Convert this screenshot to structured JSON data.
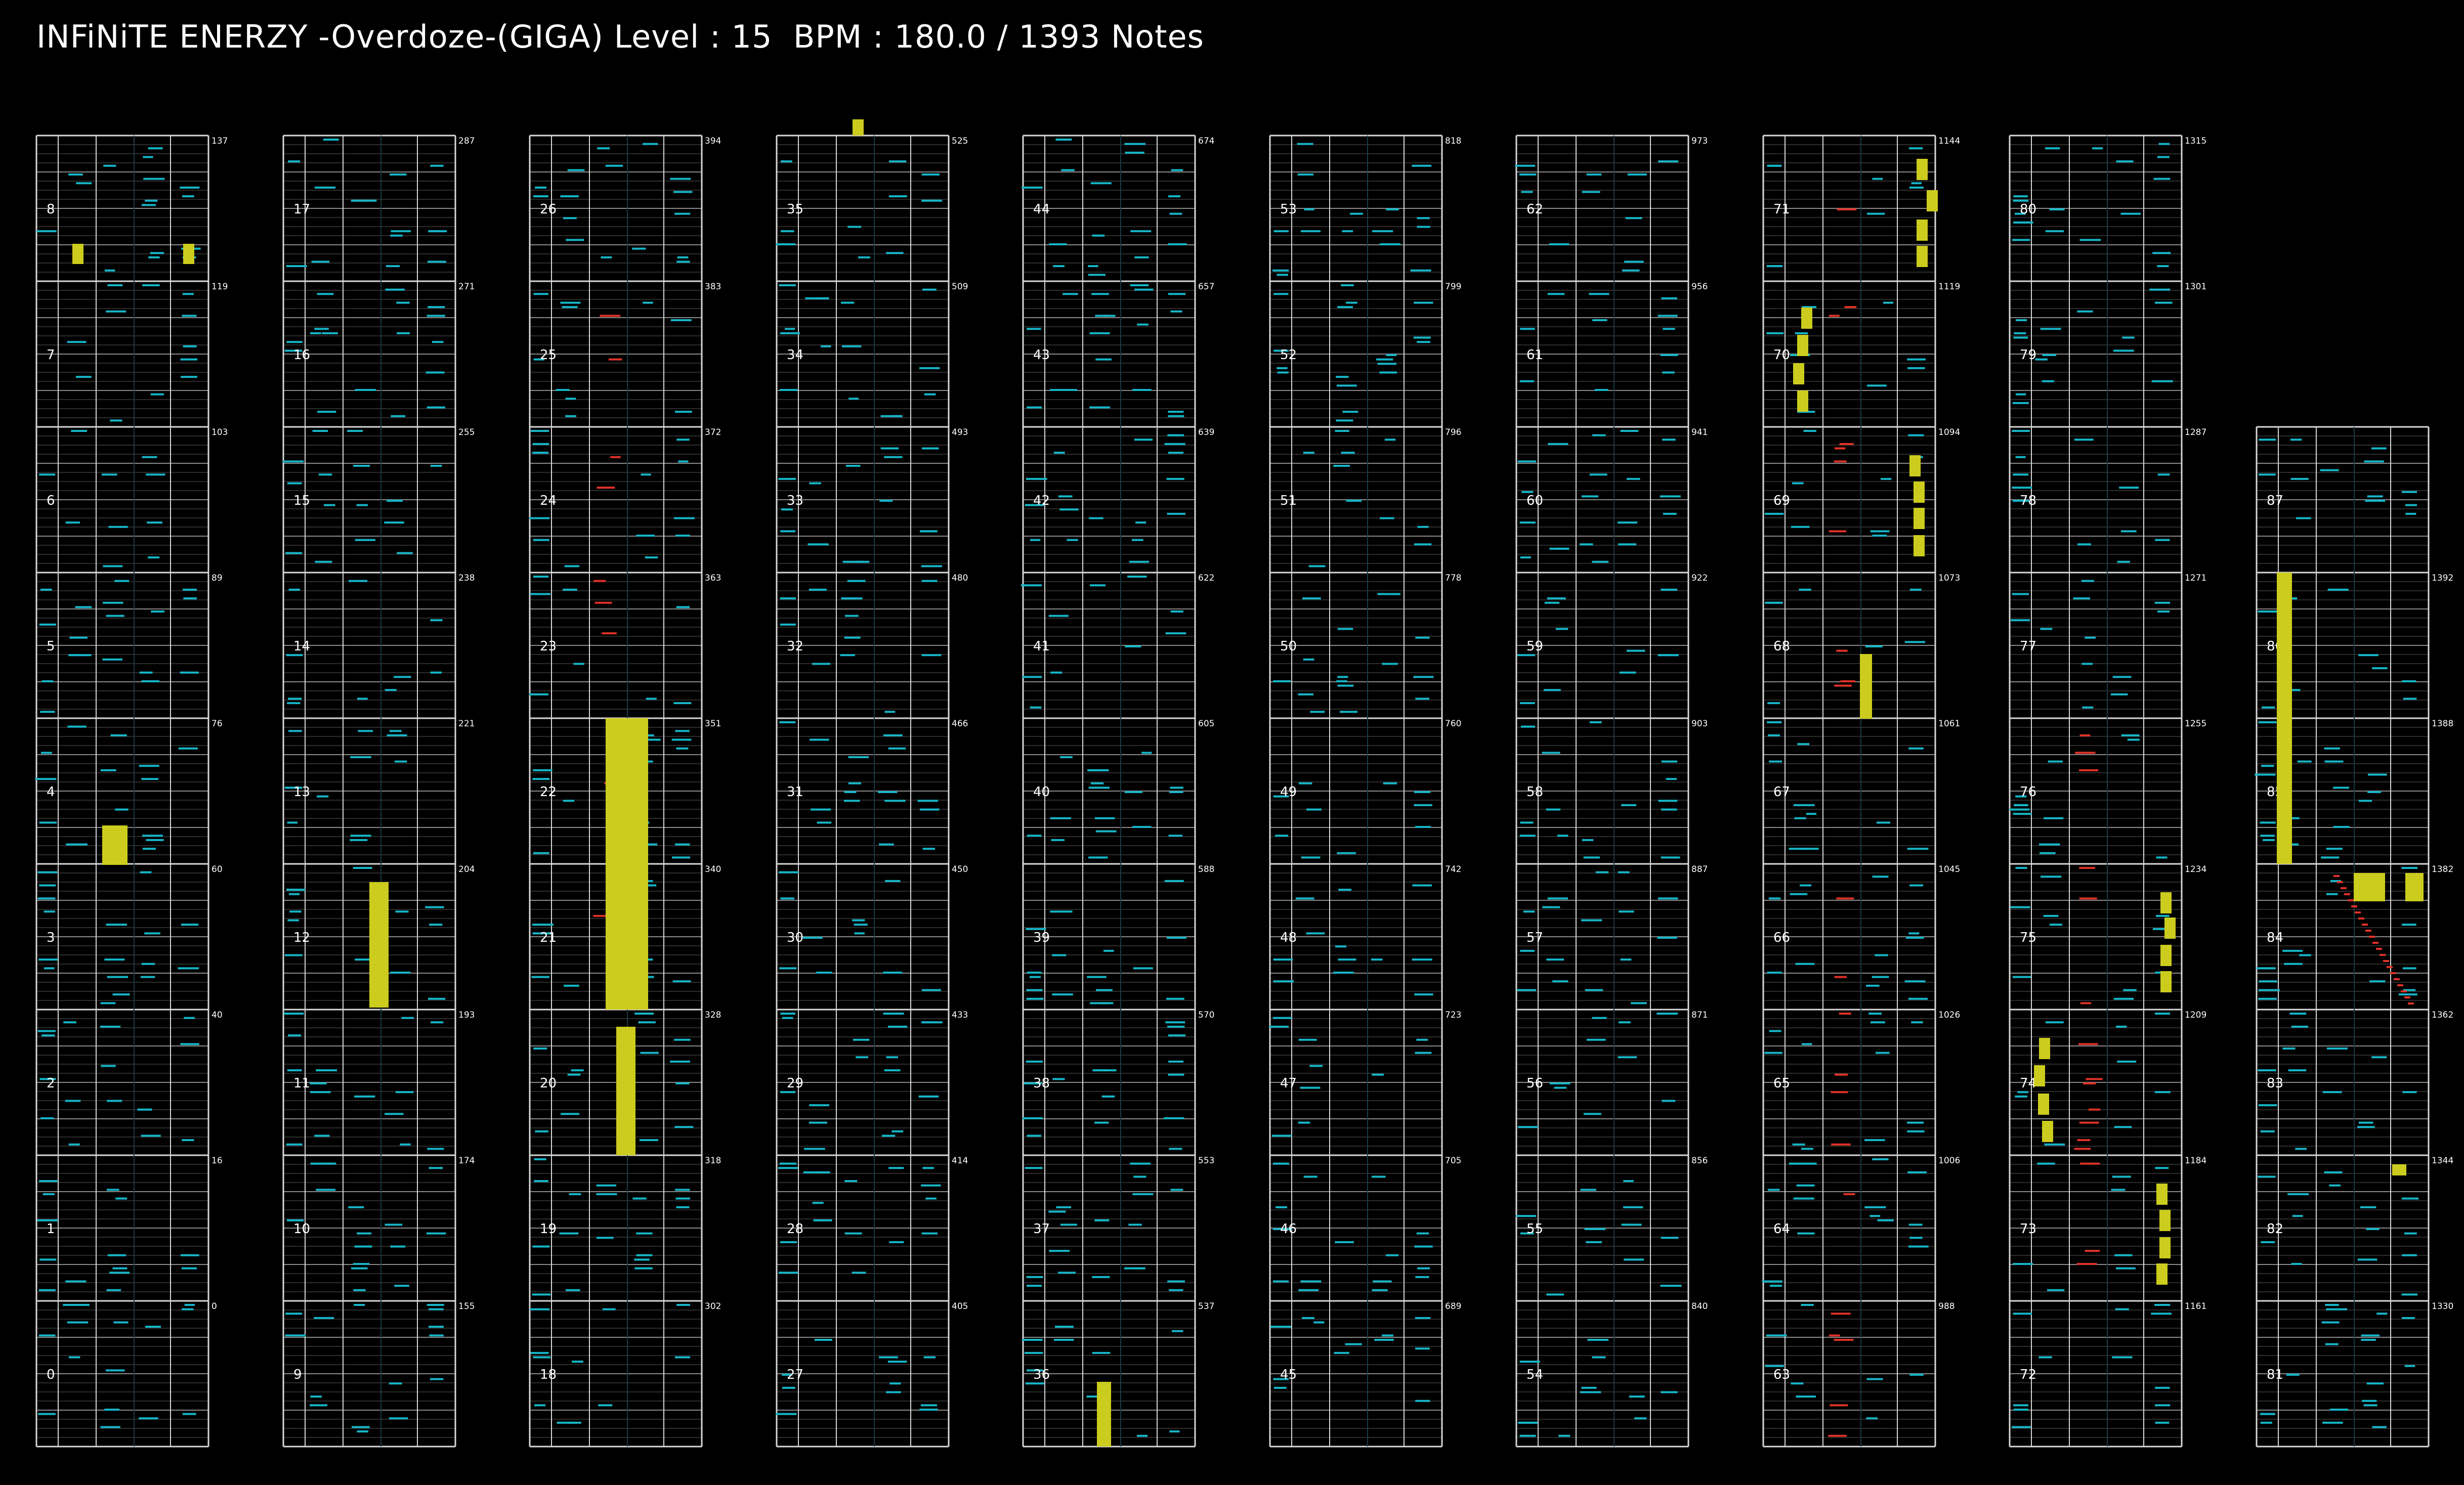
{
  "header": {
    "title": "INFiNiTE ENERZY -Overdoze-(GIGA) Level : 15  BPM : 180.0 / 1393 Notes"
  },
  "colors": {
    "background": "#000000",
    "frame": "#d8d8d8",
    "beat_line": "#8a8a8a",
    "sub_line": "#3a3a3a",
    "note_cyan": "#16b6c8",
    "note_red": "#e03228",
    "long_note": "#cccc1e",
    "text": "#ffffff"
  },
  "chart_data": {
    "type": "note_chart",
    "song": "INFiNiTE ENERZY -Overdoze-(GIGA)",
    "level": 15,
    "bpm": 180.0,
    "total_notes": 1393,
    "measures_per_column": 9,
    "columns": [
      {
        "measures": [
          8,
          7,
          6,
          5,
          4,
          3,
          2,
          1,
          0
        ],
        "counts": [
          "137",
          "119",
          "103",
          "89",
          "76",
          "60",
          "40",
          "16",
          "0"
        ]
      },
      {
        "measures": [
          17,
          16,
          15,
          14,
          13,
          12,
          11,
          10,
          9
        ],
        "counts": [
          "287",
          "271",
          "255",
          "238",
          "221",
          "204",
          "193",
          "174",
          "155"
        ]
      },
      {
        "measures": [
          26,
          25,
          24,
          23,
          22,
          21,
          20,
          19,
          18
        ],
        "counts": [
          "394",
          "383",
          "372",
          "363",
          "351",
          "340",
          "328",
          "318",
          "302"
        ]
      },
      {
        "measures": [
          35,
          34,
          33,
          32,
          31,
          30,
          29,
          28,
          27
        ],
        "counts": [
          "525",
          "509",
          "493",
          "480",
          "466",
          "450",
          "433",
          "414",
          "405"
        ]
      },
      {
        "measures": [
          44,
          43,
          42,
          41,
          40,
          39,
          38,
          37,
          36
        ],
        "counts": [
          "674",
          "657",
          "639",
          "622",
          "605",
          "588",
          "570",
          "553",
          "537"
        ]
      },
      {
        "measures": [
          53,
          52,
          51,
          50,
          49,
          48,
          47,
          46,
          45
        ],
        "counts": [
          "818",
          "799",
          "796",
          "778",
          "760",
          "742",
          "723",
          "705",
          "689"
        ]
      },
      {
        "measures": [
          62,
          61,
          60,
          59,
          58,
          57,
          56,
          55,
          54
        ],
        "counts": [
          "973",
          "956",
          "941",
          "922",
          "903",
          "887",
          "871",
          "856",
          "840"
        ]
      },
      {
        "measures": [
          71,
          70,
          69,
          68,
          67,
          66,
          65,
          64,
          63
        ],
        "counts": [
          "1144",
          "1119",
          "1094",
          "1073",
          "1061",
          "1045",
          "1026",
          "1006",
          "988"
        ]
      },
      {
        "measures": [
          80,
          79,
          78,
          77,
          76,
          75,
          74,
          73,
          72
        ],
        "counts": [
          "1315",
          "1301",
          "1287",
          "1271",
          "1255",
          "1234",
          "1209",
          "1184",
          "1161"
        ]
      },
      {
        "measures": [
          87,
          86,
          85,
          84,
          83,
          82,
          81
        ],
        "counts": [
          "",
          "1392",
          "1388",
          "1382",
          "1362",
          "1344",
          "1330"
        ]
      }
    ]
  }
}
